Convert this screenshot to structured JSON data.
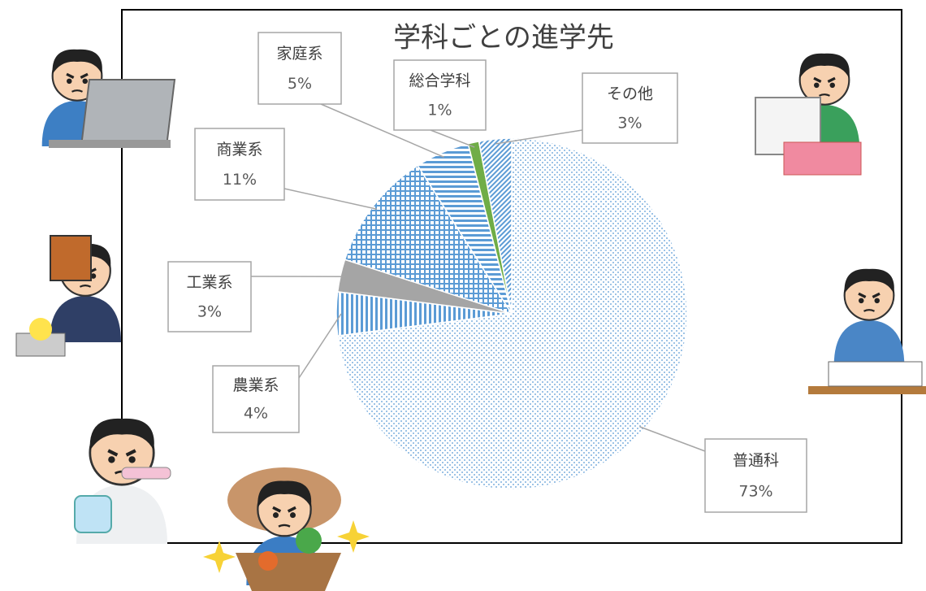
{
  "chart_data": {
    "type": "pie",
    "title": "学科ごとの進学先",
    "categories": [
      "普通科",
      "農業系",
      "工業系",
      "商業系",
      "家庭系",
      "総合学科",
      "その他"
    ],
    "values": [
      73,
      4,
      3,
      11,
      5,
      1,
      3
    ],
    "value_labels": [
      "73%",
      "4%",
      "3%",
      "11%",
      "5%",
      "1%",
      "3%"
    ],
    "colors": [
      "#9dc3e6",
      "#5b9bd5",
      "#a5a5a5",
      "#5b9bd5",
      "#5b9bd5",
      "#70ad47",
      "#5b9bd5"
    ]
  }
}
